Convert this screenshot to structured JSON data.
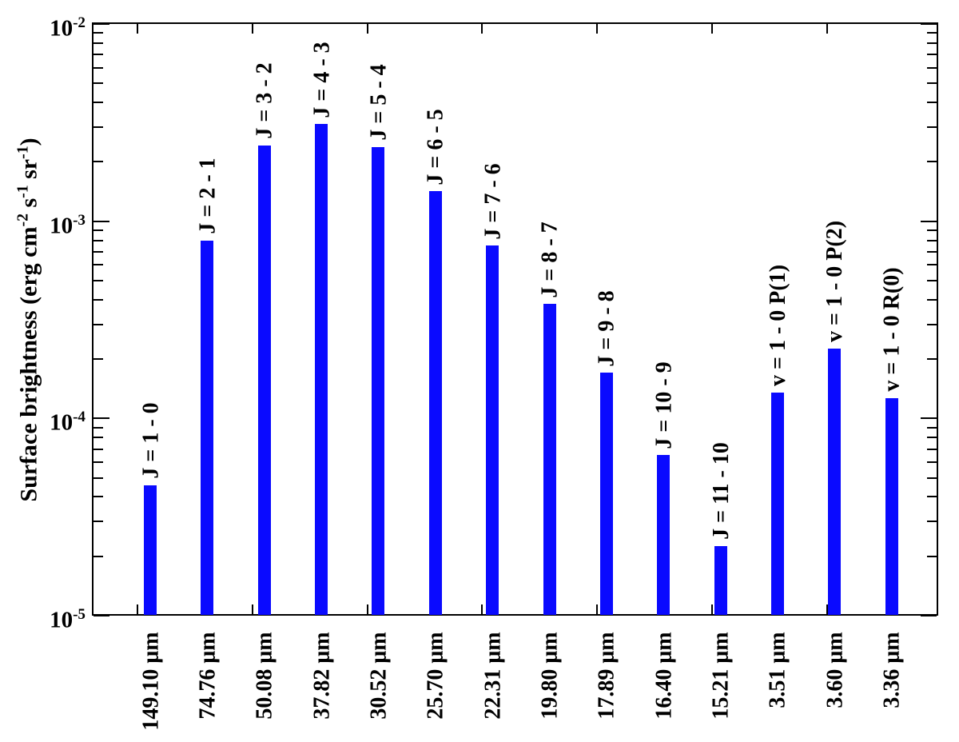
{
  "chart_data": {
    "type": "bar",
    "title": "",
    "xlabel": "",
    "ylabel": "Surface brightness (erg cm⁻² s⁻¹ sr⁻¹)",
    "ylabel_segments": [
      {
        "text": "Surface brightness (erg cm"
      },
      {
        "sup": "-2"
      },
      {
        "text": " s"
      },
      {
        "sup": "-1"
      },
      {
        "text": " sr"
      },
      {
        "sup": "-1"
      },
      {
        "text": ")"
      }
    ],
    "yscale": "log",
    "ylim": [
      1e-05,
      0.01
    ],
    "y_tick_exponents": [
      -2,
      -3,
      -4,
      -5
    ],
    "grid": false,
    "legend": null,
    "bar_color": "#0a0aff",
    "axis_color": "#000000",
    "categories": [
      "149.10 μm",
      "74.76 μm",
      "50.08 μm",
      "37.82 μm",
      "30.52 μm",
      "25.70 μm",
      "22.31 μm",
      "19.80 μm",
      "17.89 μm",
      "16.40 μm",
      "15.21 μm",
      "3.51 μm",
      "3.60 μm",
      "3.36 μm"
    ],
    "bar_labels": [
      "J = 1 - 0",
      "J = 2 - 1",
      "J = 3 - 2",
      "J = 4 - 3",
      "J = 5 - 4",
      "J = 6 - 5",
      "J = 7 - 6",
      "J = 8 - 7",
      "J = 9 - 8",
      "J = 10 - 9",
      "J = 11 - 10",
      "v = 1 - 0 P(1)",
      "v = 1 - 0 P(2)",
      "v = 1 - 0 R(0)"
    ],
    "values": [
      4.6e-05,
      0.0008,
      0.00242,
      0.0031,
      0.00238,
      0.00142,
      0.00075,
      0.00038,
      0.00017,
      6.5e-05,
      2.25e-05,
      0.000135,
      0.000225,
      0.000127
    ]
  }
}
